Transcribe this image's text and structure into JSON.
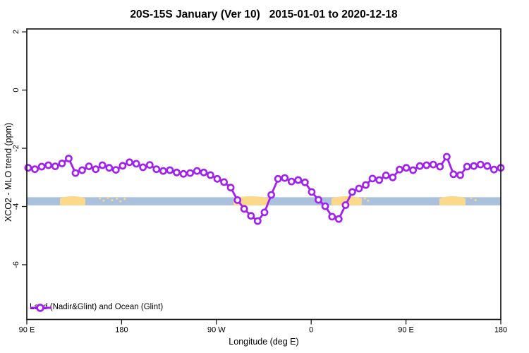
{
  "chart_data": {
    "type": "line",
    "title": "20S-15S January (Ver 10)   2015-01-01 to 2020-12-18",
    "xlabel": "Longitude (deg E)",
    "ylabel": "XCO2 - MLO trend (ppm)",
    "xlim": [
      90,
      540
    ],
    "ylim": [
      -7.88,
      2.1
    ],
    "grid": false,
    "x_ticks": [
      {
        "lon": 90,
        "label": "90 E"
      },
      {
        "lon": 180,
        "label": "180"
      },
      {
        "lon": 270,
        "label": "90 W"
      },
      {
        "lon": 360,
        "label": "0"
      },
      {
        "lon": 450,
        "label": "90 E"
      },
      {
        "lon": 540,
        "label": "180"
      }
    ],
    "y_ticks": [
      2,
      0,
      -2,
      -4,
      -6
    ],
    "legend": {
      "label": "Land (Nadir&Glint) and Ocean (Glint)",
      "position": "bottom-left"
    },
    "colors": {
      "series": "#A020F0",
      "marker_fill": "#FFFFFF",
      "band_blue": "#AAC0DD",
      "band_orange": "#FBD88A",
      "axis": "#1A1A1A"
    },
    "series": [
      {
        "name": "Land (Nadir&Glint) and Ocean (Glint)",
        "marker": "open-circle",
        "x": [
          91.3,
          97.7,
          104.1,
          110.5,
          117.0,
          123.4,
          129.8,
          136.2,
          142.6,
          149.0,
          155.4,
          161.8,
          168.2,
          174.6,
          181.0,
          187.5,
          193.9,
          200.3,
          206.7,
          213.1,
          219.5,
          225.9,
          232.3,
          238.7,
          245.1,
          251.6,
          258.0,
          264.4,
          270.8,
          277.2,
          283.6,
          290.0,
          296.4,
          302.8,
          309.2,
          315.7,
          322.1,
          328.5,
          334.9,
          341.3,
          347.7,
          354.1,
          360.5,
          366.9,
          373.3,
          379.8,
          386.2,
          392.6,
          399.0,
          405.4,
          411.8,
          418.2,
          424.6,
          431.0,
          437.4,
          443.9,
          450.3,
          456.7,
          463.1,
          469.5,
          475.9,
          482.3,
          488.7,
          495.1,
          501.5,
          508.0,
          514.4,
          520.8,
          527.2,
          533.6,
          540.0
        ],
        "y": [
          -2.67,
          -2.72,
          -2.63,
          -2.58,
          -2.62,
          -2.52,
          -2.35,
          -2.85,
          -2.75,
          -2.62,
          -2.72,
          -2.58,
          -2.67,
          -2.74,
          -2.6,
          -2.48,
          -2.53,
          -2.65,
          -2.57,
          -2.72,
          -2.78,
          -2.75,
          -2.83,
          -2.88,
          -2.85,
          -2.78,
          -2.83,
          -2.92,
          -3.05,
          -3.16,
          -3.35,
          -3.78,
          -4.08,
          -4.32,
          -4.5,
          -4.2,
          -3.6,
          -3.05,
          -3.02,
          -3.14,
          -3.09,
          -3.17,
          -3.5,
          -3.77,
          -3.99,
          -4.35,
          -4.43,
          -3.95,
          -3.5,
          -3.38,
          -3.26,
          -3.04,
          -3.09,
          -2.93,
          -3.0,
          -2.73,
          -2.67,
          -2.75,
          -2.61,
          -2.58,
          -2.56,
          -2.63,
          -2.29,
          -2.89,
          -2.92,
          -2.63,
          -2.61,
          -2.56,
          -2.61,
          -2.73,
          -2.67
        ]
      }
    ],
    "bands": {
      "blue": {
        "x0": 90,
        "x1": 540,
        "y_top": -3.68,
        "y_bottom": -3.96
      },
      "orange_patches": [
        {
          "x0": 121.5,
          "x1": 145.6
        },
        {
          "x0": 286.2,
          "x1": 320.3
        },
        {
          "x0": 379.2,
          "x1": 408.0
        },
        {
          "x0": 481.7,
          "x1": 506.5
        }
      ],
      "orange_speckles": [
        [
          159.5,
          -3.72
        ],
        [
          163.0,
          -3.8
        ],
        [
          167.0,
          -3.7
        ],
        [
          171.0,
          -3.78
        ],
        [
          175.5,
          -3.73
        ],
        [
          179.0,
          -3.82
        ],
        [
          183.0,
          -3.74
        ],
        [
          411.0,
          -3.72
        ],
        [
          414.0,
          -3.8
        ],
        [
          512.0,
          -3.7
        ],
        [
          516.0,
          -3.78
        ]
      ]
    }
  }
}
